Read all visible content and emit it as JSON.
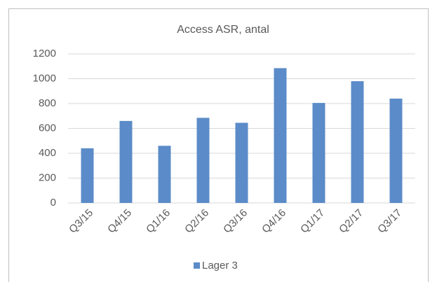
{
  "chart_data": {
    "type": "bar",
    "title": "Access ASR, antal",
    "categories": [
      "Q3/15",
      "Q4/15",
      "Q1/16",
      "Q2/16",
      "Q3/16",
      "Q4/16",
      "Q1/17",
      "Q2/17",
      "Q3/17"
    ],
    "series": [
      {
        "name": "Lager 3",
        "color": "#5b8bc8",
        "values": [
          440,
          660,
          460,
          685,
          645,
          1085,
          805,
          980,
          840
        ]
      }
    ],
    "ylim": [
      0,
      1200
    ],
    "yticks": [
      0,
      200,
      400,
      600,
      800,
      1000,
      1200
    ],
    "grid": true,
    "legend": "bottom"
  }
}
